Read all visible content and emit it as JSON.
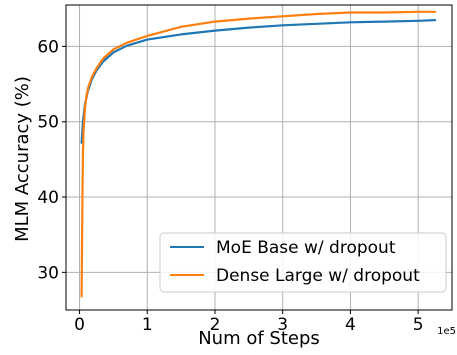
{
  "chart_data": {
    "type": "line",
    "title": "",
    "xlabel": "Num of Steps",
    "ylabel": "MLM Accuracy (%)",
    "x_offset_label": "1e5",
    "xlim": [
      -0.2,
      5.5
    ],
    "ylim": [
      25,
      65.5
    ],
    "xticks": [
      0,
      1,
      2,
      3,
      4,
      5
    ],
    "xtick_labels": [
      "0",
      "1",
      "2",
      "3",
      "4",
      "5"
    ],
    "yticks": [
      30,
      40,
      50,
      60
    ],
    "ytick_labels": [
      "30",
      "40",
      "50",
      "60"
    ],
    "grid": true,
    "legend_position": "lower-right",
    "series": [
      {
        "name": "MoE Base w/ dropout",
        "color": "#1f77b4",
        "x": [
          0.03,
          0.05,
          0.08,
          0.12,
          0.18,
          0.25,
          0.35,
          0.5,
          0.7,
          1.0,
          1.5,
          2.0,
          2.5,
          3.0,
          3.5,
          4.0,
          4.5,
          5.0,
          5.25
        ],
        "y": [
          47.2,
          50.0,
          52.3,
          54.0,
          55.6,
          56.8,
          58.0,
          59.2,
          60.1,
          60.9,
          61.6,
          62.1,
          62.5,
          62.8,
          63.0,
          63.2,
          63.3,
          63.4,
          63.5
        ]
      },
      {
        "name": "Dense Large w/ dropout",
        "color": "#ff7f0e",
        "x": [
          0.03,
          0.04,
          0.05,
          0.06,
          0.08,
          0.1,
          0.13,
          0.18,
          0.25,
          0.35,
          0.5,
          0.7,
          1.0,
          1.5,
          2.0,
          2.5,
          3.0,
          3.5,
          4.0,
          4.5,
          5.0,
          5.25
        ],
        "y": [
          26.8,
          38.0,
          45.5,
          49.0,
          51.8,
          53.3,
          54.6,
          55.9,
          57.1,
          58.4,
          59.6,
          60.5,
          61.4,
          62.6,
          63.3,
          63.7,
          64.0,
          64.3,
          64.5,
          64.5,
          64.6,
          64.6
        ]
      }
    ]
  }
}
